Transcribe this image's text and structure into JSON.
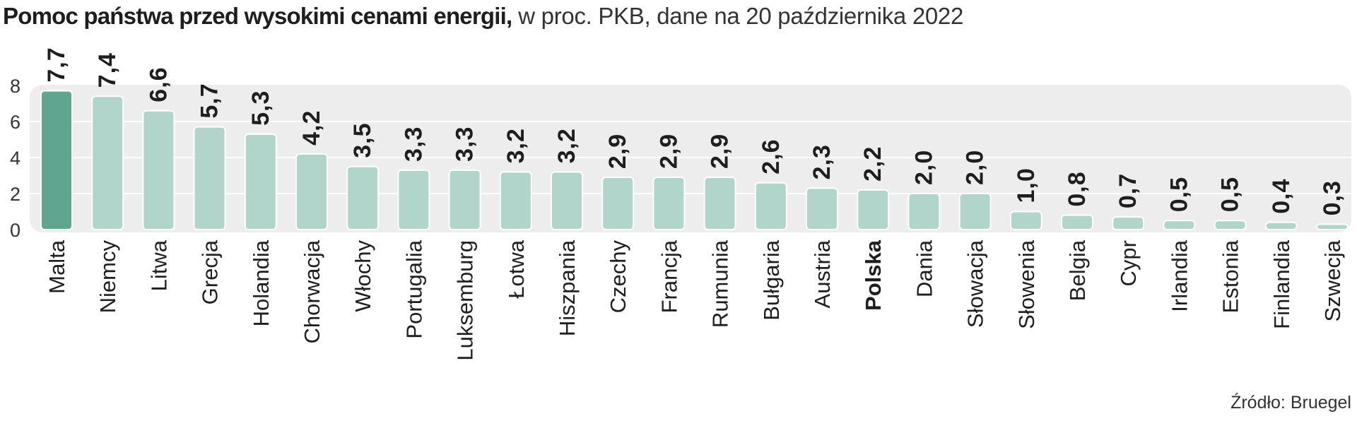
{
  "title_bold": "Pomoc państwa przed wysokimi cenami energii,",
  "title_rest": " w proc. PKB, dane na 20 października 2022",
  "source": "Źródło: Bruegel",
  "colors": {
    "highlight_bar": "#5fa590",
    "bar": "#b2d5cb",
    "panel": "#ededed",
    "gridline": "#ffffff",
    "text": "#1e1e1e"
  },
  "chart_data": {
    "type": "bar",
    "categories": [
      "Malta",
      "Niemcy",
      "Litwa",
      "Grecja",
      "Holandia",
      "Chorwacja",
      "Włochy",
      "Portugalia",
      "Luksemburg",
      "Łotwa",
      "Hiszpania",
      "Czechy",
      "Francja",
      "Rumunia",
      "Bułgaria",
      "Austria",
      "Polska",
      "Dania",
      "Słowacja",
      "Słowenia",
      "Belgia",
      "Cypr",
      "Irlandia",
      "Estonia",
      "Finlandia",
      "Szwecja"
    ],
    "values": [
      7.7,
      7.4,
      6.6,
      5.7,
      5.3,
      4.2,
      3.5,
      3.3,
      3.3,
      3.2,
      3.2,
      2.9,
      2.9,
      2.9,
      2.6,
      2.3,
      2.2,
      2.0,
      2.0,
      1.0,
      0.8,
      0.7,
      0.5,
      0.5,
      0.4,
      0.3
    ],
    "value_labels": [
      "7,7",
      "7,4",
      "6,6",
      "5,7",
      "5,3",
      "4,2",
      "3,5",
      "3,3",
      "3,3",
      "3,2",
      "3,2",
      "2,9",
      "2,9",
      "2,9",
      "2,6",
      "2,3",
      "2,2",
      "2,0",
      "2,0",
      "1,0",
      "0,8",
      "0,7",
      "0,5",
      "0,5",
      "0,4",
      "0,3"
    ],
    "yticks": [
      0,
      2,
      4,
      6,
      8
    ],
    "ytick_labels": [
      "0",
      "2",
      "4",
      "6",
      "8"
    ],
    "ylim": [
      0,
      8
    ],
    "highlight_category": "Malta",
    "bold_category": "Polska",
    "grid": true,
    "xlabel": "",
    "ylabel": ""
  }
}
